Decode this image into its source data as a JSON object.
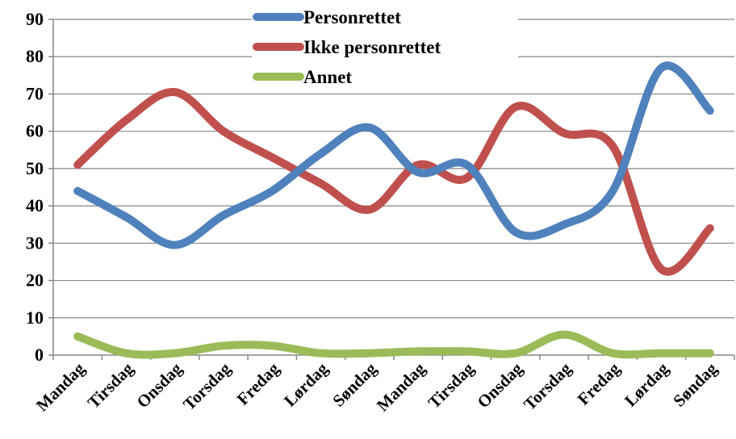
{
  "chart_data": {
    "type": "line",
    "title": "",
    "xlabel": "",
    "ylabel": "",
    "ylim": [
      0,
      90
    ],
    "yticks": [
      0,
      10,
      20,
      30,
      40,
      50,
      60,
      70,
      80,
      90
    ],
    "grid": true,
    "legend_position": "top-center",
    "categories": [
      "Mandag",
      "Tirsdag",
      "Onsdag",
      "Torsdag",
      "Fredag",
      "Lørdag",
      "Søndag",
      "Mandag",
      "Tirsdag",
      "Onsdag",
      "Torsdag",
      "Fredag",
      "Lørdag",
      "Søndag"
    ],
    "series": [
      {
        "name": "Personrettet",
        "color": "#4F81BD",
        "values": [
          44,
          37,
          29.5,
          37.5,
          44,
          54,
          61,
          49,
          51,
          33,
          35,
          44,
          77,
          65.5
        ]
      },
      {
        "name": "Ikke personrettet",
        "color": "#C0504D",
        "values": [
          51,
          63,
          70.5,
          60,
          53,
          46,
          39,
          51,
          47.5,
          66.5,
          59.5,
          56,
          23,
          34
        ]
      },
      {
        "name": "Annet",
        "color": "#9BBB59",
        "values": [
          5,
          0.5,
          0.5,
          2.5,
          2.5,
          0.5,
          0.5,
          1,
          1,
          0.5,
          5.5,
          0.5,
          0.5,
          0.5
        ]
      }
    ]
  }
}
